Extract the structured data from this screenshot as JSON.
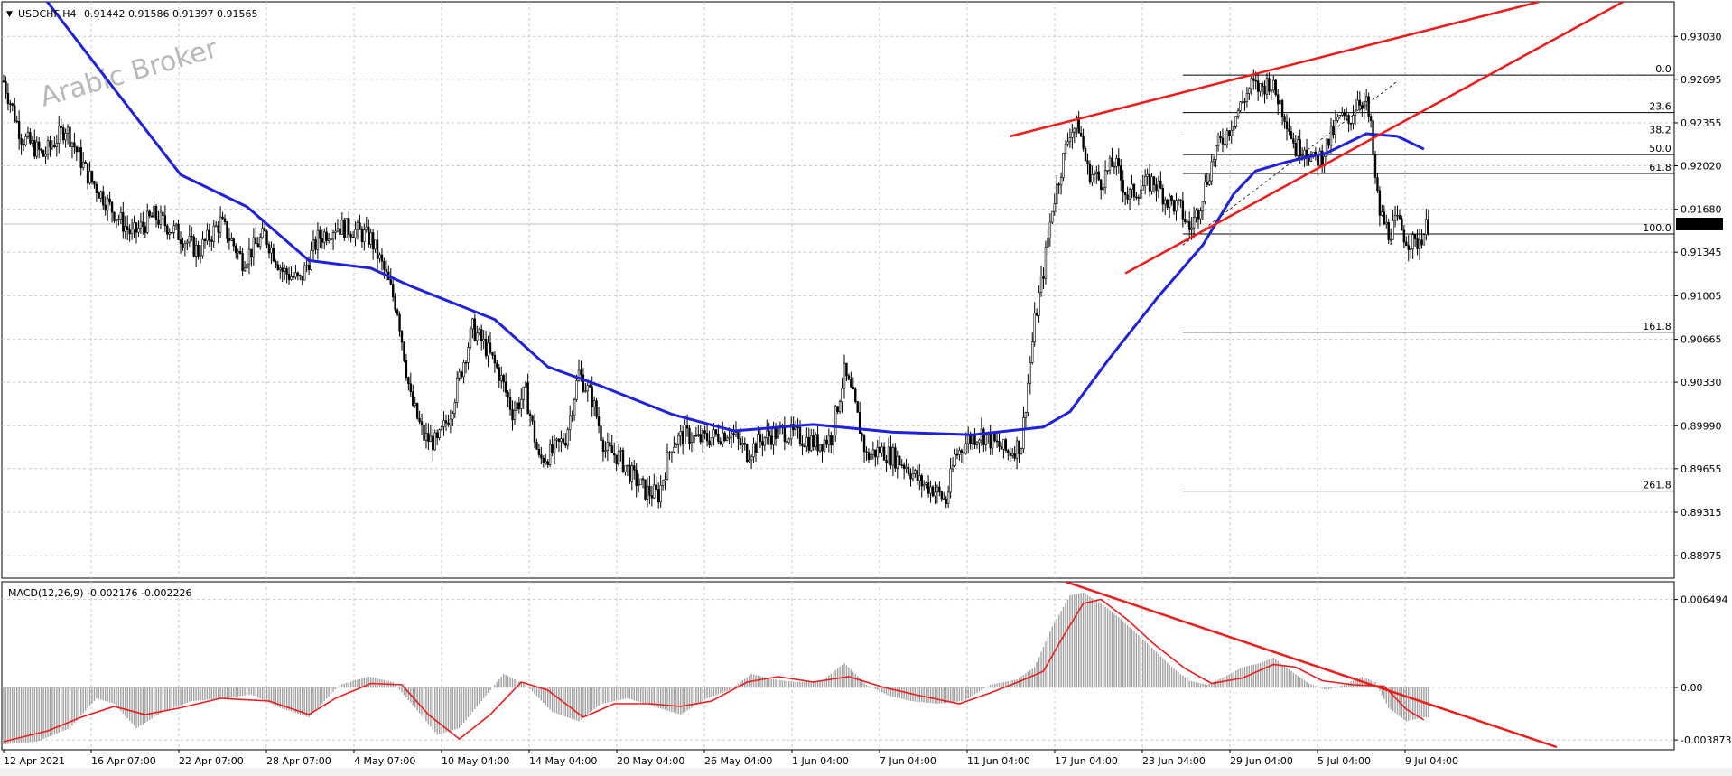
{
  "chart_data": {
    "type": "candlestick",
    "symbol_header": "USDCHF,H4",
    "ohlc_header": "0.91442 0.91586 0.91397 0.91565",
    "watermark": "Arabic Broker",
    "current_price": "0.91565",
    "price_axis": {
      "range": [
        0.888,
        0.933
      ],
      "ticks": [
        "0.93030",
        "0.92695",
        "0.92355",
        "0.92020",
        "0.91680",
        "0.91345",
        "0.91005",
        "0.90665",
        "0.90330",
        "0.89990",
        "0.89655",
        "0.89315",
        "0.88975"
      ]
    },
    "time_axis": {
      "labels": [
        "12 Apr 2021",
        "16 Apr 07:00",
        "22 Apr 07:00",
        "28 Apr 07:00",
        "4 May 07:00",
        "10 May 04:00",
        "14 May 04:00",
        "20 May 04:00",
        "26 May 04:00",
        "1 Jun 04:00",
        "7 Jun 04:00",
        "11 Jun 04:00",
        "17 Jun 04:00",
        "23 Jun 04:00",
        "29 Jun 04:00",
        "5 Jul 04:00",
        "9 Jul 04:00"
      ],
      "bars_total": 315
    },
    "price_path": [
      [
        0,
        0.9268
      ],
      [
        8,
        0.9225
      ],
      [
        18,
        0.921
      ],
      [
        28,
        0.9232
      ],
      [
        38,
        0.9195
      ],
      [
        48,
        0.917
      ],
      [
        58,
        0.9148
      ],
      [
        68,
        0.9163
      ],
      [
        78,
        0.915
      ],
      [
        88,
        0.9135
      ],
      [
        98,
        0.9158
      ],
      [
        108,
        0.9128
      ],
      [
        118,
        0.9148
      ],
      [
        126,
        0.912
      ],
      [
        134,
        0.9112
      ],
      [
        142,
        0.9145
      ],
      [
        150,
        0.9155
      ],
      [
        158,
        0.9152
      ],
      [
        166,
        0.9145
      ],
      [
        172,
        0.912
      ],
      [
        178,
        0.909
      ],
      [
        184,
        0.902
      ],
      [
        190,
        0.899
      ],
      [
        196,
        0.8985
      ],
      [
        202,
        0.901
      ],
      [
        208,
        0.905
      ],
      [
        212,
        0.9075
      ],
      [
        218,
        0.906
      ],
      [
        224,
        0.904
      ],
      [
        230,
        0.901
      ],
      [
        236,
        0.9025
      ],
      [
        242,
        0.8972
      ],
      [
        248,
        0.8978
      ],
      [
        254,
        0.899
      ],
      [
        260,
        0.904
      ],
      [
        266,
        0.902
      ],
      [
        272,
        0.898
      ],
      [
        278,
        0.8975
      ],
      [
        284,
        0.896
      ],
      [
        290,
        0.8948
      ],
      [
        296,
        0.8945
      ],
      [
        302,
        0.8985
      ],
      [
        308,
        0.8992
      ],
      [
        314,
        0.8988
      ],
      [
        320,
        0.899
      ],
      [
        328,
        0.8995
      ],
      [
        336,
        0.8978
      ],
      [
        344,
        0.899
      ],
      [
        352,
        0.8995
      ],
      [
        360,
        0.899
      ],
      [
        368,
        0.8985
      ],
      [
        374,
        0.899
      ],
      [
        380,
        0.904
      ],
      [
        384,
        0.902
      ],
      [
        390,
        0.8975
      ],
      [
        396,
        0.898
      ],
      [
        402,
        0.8975
      ],
      [
        408,
        0.8968
      ],
      [
        414,
        0.8955
      ],
      [
        420,
        0.895
      ],
      [
        426,
        0.894
      ],
      [
        430,
        0.8975
      ],
      [
        436,
        0.8988
      ],
      [
        442,
        0.8993
      ],
      [
        448,
        0.8985
      ],
      [
        454,
        0.8978
      ],
      [
        460,
        0.8985
      ],
      [
        466,
        0.908
      ],
      [
        470,
        0.912
      ],
      [
        474,
        0.917
      ],
      [
        478,
        0.92
      ],
      [
        482,
        0.923
      ],
      [
        486,
        0.9233
      ],
      [
        490,
        0.9198
      ],
      [
        496,
        0.919
      ],
      [
        502,
        0.9205
      ],
      [
        508,
        0.9178
      ],
      [
        514,
        0.9185
      ],
      [
        520,
        0.919
      ],
      [
        526,
        0.9175
      ],
      [
        532,
        0.9168
      ],
      [
        536,
        0.9152
      ],
      [
        540,
        0.9168
      ],
      [
        544,
        0.9192
      ],
      [
        548,
        0.9215
      ],
      [
        552,
        0.9225
      ],
      [
        556,
        0.9238
      ],
      [
        560,
        0.9252
      ],
      [
        564,
        0.9265
      ],
      [
        568,
        0.9262
      ],
      [
        572,
        0.9268
      ],
      [
        576,
        0.9255
      ],
      [
        580,
        0.9238
      ],
      [
        584,
        0.9215
      ],
      [
        588,
        0.9218
      ],
      [
        592,
        0.9205
      ],
      [
        596,
        0.921
      ],
      [
        600,
        0.9225
      ],
      [
        604,
        0.924
      ],
      [
        608,
        0.9235
      ],
      [
        612,
        0.9255
      ],
      [
        616,
        0.925
      ],
      [
        618,
        0.923
      ],
      [
        620,
        0.919
      ],
      [
        622,
        0.9165
      ],
      [
        626,
        0.915
      ],
      [
        630,
        0.9158
      ],
      [
        634,
        0.9145
      ],
      [
        638,
        0.914
      ],
      [
        642,
        0.915
      ],
      [
        644,
        0.9157
      ]
    ],
    "moving_average": [
      [
        18,
        0.9334
      ],
      [
        50,
        0.9262
      ],
      [
        80,
        0.9195
      ],
      [
        110,
        0.917
      ],
      [
        138,
        0.9128
      ],
      [
        166,
        0.9122
      ],
      [
        184,
        0.9108
      ],
      [
        222,
        0.9082
      ],
      [
        246,
        0.9045
      ],
      [
        270,
        0.903
      ],
      [
        302,
        0.9008
      ],
      [
        330,
        0.8995
      ],
      [
        366,
        0.9
      ],
      [
        402,
        0.8994
      ],
      [
        438,
        0.8992
      ],
      [
        470,
        0.8998
      ],
      [
        482,
        0.901
      ],
      [
        500,
        0.9052
      ],
      [
        522,
        0.91
      ],
      [
        542,
        0.914
      ],
      [
        556,
        0.918
      ],
      [
        566,
        0.9198
      ],
      [
        580,
        0.9205
      ],
      [
        598,
        0.9212
      ],
      [
        616,
        0.9227
      ],
      [
        630,
        0.9225
      ],
      [
        642,
        0.9215
      ]
    ],
    "trendlines_red": [
      [
        [
          455,
          0.9225
        ],
        [
          694,
          0.933
        ]
      ],
      [
        [
          507,
          0.9118
        ],
        [
          732,
          0.933
        ]
      ]
    ],
    "fibonacci": {
      "x_start": 533,
      "x_end": 755,
      "dashed_from": [
        533,
        0.914
      ],
      "dashed_to": [
        630,
        0.9268
      ],
      "levels": [
        {
          "label": "0.0",
          "price": 0.92728
        },
        {
          "label": "23.6",
          "price": 0.92435
        },
        {
          "label": "38.2",
          "price": 0.92253
        },
        {
          "label": "50.0",
          "price": 0.92107
        },
        {
          "label": "61.8",
          "price": 0.9196
        },
        {
          "label": "100.0",
          "price": 0.91487
        },
        {
          "label": "161.8",
          "price": 0.9072
        },
        {
          "label": "261.8",
          "price": 0.8948
        }
      ]
    },
    "macd": {
      "header": "MACD(12,26,9) -0.002176 -0.002226",
      "range": [
        -0.0046,
        0.0078
      ],
      "ticks": [
        "0.006494",
        "0.00",
        "-0.003873"
      ],
      "histogram_path": [
        [
          0,
          -0.0042
        ],
        [
          15,
          -0.004
        ],
        [
          30,
          -0.003
        ],
        [
          42,
          -0.0008
        ],
        [
          50,
          -0.0012
        ],
        [
          60,
          -0.003
        ],
        [
          72,
          -0.0018
        ],
        [
          85,
          -0.001
        ],
        [
          100,
          -0.0008
        ],
        [
          112,
          -0.0005
        ],
        [
          125,
          -0.0015
        ],
        [
          138,
          -0.0022
        ],
        [
          152,
          0.0002
        ],
        [
          165,
          0.0008
        ],
        [
          176,
          0.0004
        ],
        [
          186,
          -0.0015
        ],
        [
          196,
          -0.0035
        ],
        [
          206,
          -0.003
        ],
        [
          216,
          -0.001
        ],
        [
          226,
          0.001
        ],
        [
          236,
          0.0002
        ],
        [
          248,
          -0.0018
        ],
        [
          260,
          -0.0025
        ],
        [
          270,
          -0.0012
        ],
        [
          282,
          -0.0008
        ],
        [
          294,
          -0.0014
        ],
        [
          306,
          -0.002
        ],
        [
          318,
          -0.0008
        ],
        [
          328,
          -0.0002
        ],
        [
          338,
          0.001
        ],
        [
          348,
          0.0006
        ],
        [
          358,
          0.0004
        ],
        [
          370,
          0.0005
        ],
        [
          380,
          0.0018
        ],
        [
          390,
          0.0002
        ],
        [
          400,
          -0.0006
        ],
        [
          410,
          -0.001
        ],
        [
          422,
          -0.0012
        ],
        [
          434,
          -0.001
        ],
        [
          446,
          0.0002
        ],
        [
          458,
          0.0006
        ],
        [
          466,
          0.0015
        ],
        [
          474,
          0.0045
        ],
        [
          482,
          0.0068
        ],
        [
          488,
          0.007
        ],
        [
          496,
          0.0062
        ],
        [
          504,
          0.0052
        ],
        [
          512,
          0.004
        ],
        [
          520,
          0.0028
        ],
        [
          528,
          0.0015
        ],
        [
          536,
          0.0005
        ],
        [
          544,
          0.0002
        ],
        [
          552,
          0.0008
        ],
        [
          560,
          0.0015
        ],
        [
          568,
          0.0018
        ],
        [
          574,
          0.0022
        ],
        [
          582,
          0.0012
        ],
        [
          590,
          0.0003
        ],
        [
          598,
          -0.0002
        ],
        [
          606,
          0.0002
        ],
        [
          614,
          0.0008
        ],
        [
          620,
          0.0004
        ],
        [
          626,
          -0.0015
        ],
        [
          634,
          -0.0025
        ],
        [
          642,
          -0.0022
        ]
      ],
      "signal_path": [
        [
          0,
          -0.004
        ],
        [
          20,
          -0.0032
        ],
        [
          35,
          -0.0022
        ],
        [
          50,
          -0.0014
        ],
        [
          64,
          -0.002
        ],
        [
          80,
          -0.0015
        ],
        [
          98,
          -0.0008
        ],
        [
          120,
          -0.001
        ],
        [
          138,
          -0.002
        ],
        [
          150,
          -0.0008
        ],
        [
          166,
          0.0003
        ],
        [
          180,
          0.0002
        ],
        [
          192,
          -0.002
        ],
        [
          206,
          -0.0038
        ],
        [
          220,
          -0.002
        ],
        [
          234,
          0.0004
        ],
        [
          246,
          -0.0002
        ],
        [
          262,
          -0.0022
        ],
        [
          276,
          -0.0012
        ],
        [
          292,
          -0.0012
        ],
        [
          306,
          -0.0014
        ],
        [
          320,
          -0.001
        ],
        [
          336,
          0.0004
        ],
        [
          350,
          0.0008
        ],
        [
          366,
          0.0004
        ],
        [
          382,
          0.0008
        ],
        [
          398,
          0.0
        ],
        [
          414,
          -0.0006
        ],
        [
          432,
          -0.0012
        ],
        [
          446,
          -0.0004
        ],
        [
          460,
          0.0005
        ],
        [
          470,
          0.0012
        ],
        [
          478,
          0.0035
        ],
        [
          488,
          0.0062
        ],
        [
          496,
          0.0065
        ],
        [
          508,
          0.005
        ],
        [
          520,
          0.0032
        ],
        [
          534,
          0.0014
        ],
        [
          546,
          0.0003
        ],
        [
          560,
          0.0007
        ],
        [
          574,
          0.0017
        ],
        [
          584,
          0.0015
        ],
        [
          596,
          0.0005
        ],
        [
          610,
          0.0002
        ],
        [
          624,
          0.0001
        ],
        [
          634,
          -0.0016
        ],
        [
          642,
          -0.0024
        ]
      ],
      "trendline_red": [
        [
          480,
          0.0078
        ],
        [
          702,
          -0.0044
        ]
      ]
    },
    "colors": {
      "grid": "#c8c8c8",
      "candle": "#000000",
      "ma": "#1e22dc",
      "trend": "#ee1b1b",
      "fib": "#000000",
      "histogram": "#a0a0a0",
      "price_tag_bg": "#000000",
      "price_tag_fg": "#ffffff"
    }
  }
}
